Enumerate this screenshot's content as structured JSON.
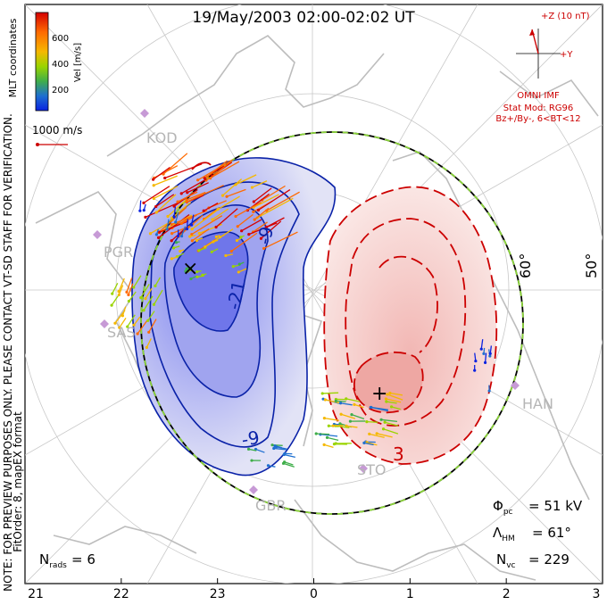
{
  "title": "19/May/2003 02:00-02:02 UT",
  "mlt_axis": {
    "tick_labels": [
      "21",
      "22",
      "23",
      "0",
      "1",
      "2",
      "3"
    ]
  },
  "colorbar": {
    "label": "Vel [m/s]",
    "ticks": [
      "600",
      "400",
      "200"
    ],
    "colors": [
      "#d40000",
      "#ff6a00",
      "#f5b800",
      "#9ad400",
      "#3fae4a",
      "#1e6fd0",
      "#0a22e0"
    ]
  },
  "scale_vector_label": "1000 m/s",
  "mlt_coords_label": "MLT coordinates",
  "imf": {
    "bz_label": "+Z (10 nT)",
    "by_label": "+Y",
    "source_label": "OMNI IMF",
    "model_line1": "Stat Mod: RG96",
    "model_line2": "Bz+/By-, 6<BT<12"
  },
  "latitude_labels": [
    "60°",
    "50°"
  ],
  "stations": [
    "KOD",
    "PGR",
    "SAS",
    "GBR",
    "STO",
    "HAN"
  ],
  "contour_labels": {
    "neg_inner": "-21",
    "neg_mid": "-9",
    "neg_outer": "-9",
    "pos_low": "3",
    "neg_side": "-3"
  },
  "side_note_1": "NOTE: FOR PREVIEW PURPOSES ONLY. PLEASE CONTACT VT-SD STAFF FOR VERIFICATION.",
  "side_note_2": "FitOrder: 8, mapEX format",
  "stats": {
    "phi_pc": "51 kV",
    "lambda_hm": "61°",
    "n_vc": "229",
    "n_rads": "6"
  },
  "chart_data": {
    "type": "polar-convection-map",
    "title": "19/May/2003 02:00-02:02 UT",
    "x_axis": "MLT",
    "x_ticks": [
      "21",
      "22",
      "23",
      "0",
      "1",
      "2",
      "3"
    ],
    "latitude_rings_deg": [
      60,
      50
    ],
    "colorbar_range_ms": [
      0,
      700
    ],
    "cross_polar_cap_potential_kV": 51,
    "heppner_maynard_lat_deg": 61,
    "num_vectors": 229,
    "num_radars": 6,
    "accent_negative": "#0a22a8",
    "accent_positive": "#cc0000"
  }
}
